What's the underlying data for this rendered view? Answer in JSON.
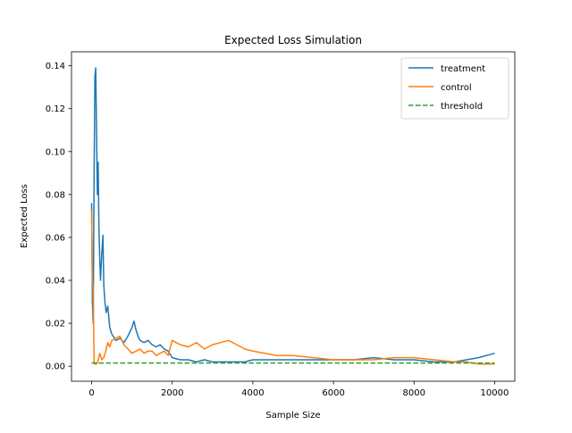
{
  "chart_data": {
    "type": "line",
    "title": "Expected Loss Simulation",
    "xlabel": "Sample Size",
    "ylabel": "Expected Loss",
    "xlim": [
      -500,
      10500
    ],
    "ylim": [
      -0.007,
      0.1465
    ],
    "xticks": [
      0,
      2000,
      4000,
      6000,
      8000,
      10000
    ],
    "xtick_labels": [
      "0",
      "2000",
      "4000",
      "6000",
      "8000",
      "10000"
    ],
    "yticks": [
      0.0,
      0.02,
      0.04,
      0.06,
      0.08,
      0.1,
      0.12,
      0.14
    ],
    "ytick_labels": [
      "0.00",
      "0.02",
      "0.04",
      "0.06",
      "0.08",
      "0.10",
      "0.12",
      "0.14"
    ],
    "grid": false,
    "legend_position": "top-right",
    "series": [
      {
        "name": "treatment",
        "color": "#1f77b4",
        "style": "solid",
        "x": [
          0,
          20,
          40,
          60,
          80,
          100,
          120,
          140,
          160,
          180,
          200,
          220,
          250,
          280,
          300,
          330,
          360,
          400,
          450,
          500,
          600,
          700,
          800,
          900,
          1000,
          1050,
          1100,
          1150,
          1200,
          1300,
          1400,
          1500,
          1600,
          1700,
          1800,
          1900,
          2000,
          2200,
          2400,
          2600,
          2800,
          3000,
          3200,
          3400,
          3600,
          3800,
          4000,
          4500,
          5000,
          5500,
          6000,
          6500,
          7000,
          7500,
          8000,
          8500,
          9000,
          9300,
          9600,
          9800,
          10000
        ],
        "y": [
          0.076,
          0.03,
          0.02,
          0.09,
          0.135,
          0.139,
          0.11,
          0.08,
          0.095,
          0.065,
          0.05,
          0.04,
          0.052,
          0.061,
          0.038,
          0.03,
          0.025,
          0.028,
          0.018,
          0.015,
          0.012,
          0.013,
          0.011,
          0.014,
          0.018,
          0.021,
          0.017,
          0.014,
          0.012,
          0.011,
          0.012,
          0.01,
          0.009,
          0.01,
          0.008,
          0.007,
          0.004,
          0.003,
          0.003,
          0.002,
          0.003,
          0.002,
          0.002,
          0.002,
          0.002,
          0.002,
          0.003,
          0.003,
          0.003,
          0.003,
          0.003,
          0.003,
          0.004,
          0.003,
          0.003,
          0.002,
          0.002,
          0.003,
          0.004,
          0.005,
          0.006
        ]
      },
      {
        "name": "control",
        "color": "#ff7f0e",
        "style": "solid",
        "x": [
          0,
          20,
          40,
          60,
          80,
          100,
          120,
          150,
          200,
          250,
          300,
          350,
          400,
          450,
          500,
          600,
          700,
          800,
          900,
          1000,
          1100,
          1200,
          1300,
          1400,
          1500,
          1600,
          1700,
          1800,
          1900,
          2000,
          2100,
          2200,
          2400,
          2600,
          2800,
          3000,
          3200,
          3400,
          3600,
          3800,
          4000,
          4300,
          4600,
          5000,
          5500,
          6000,
          6500,
          7000,
          7500,
          8000,
          8500,
          9000,
          9300,
          9600,
          9800,
          10000
        ],
        "y": [
          0.073,
          0.04,
          0.035,
          0.002,
          0.001,
          0.001,
          0.001,
          0.002,
          0.006,
          0.003,
          0.004,
          0.007,
          0.011,
          0.009,
          0.012,
          0.013,
          0.014,
          0.01,
          0.008,
          0.006,
          0.007,
          0.008,
          0.006,
          0.007,
          0.007,
          0.005,
          0.006,
          0.007,
          0.005,
          0.012,
          0.011,
          0.01,
          0.009,
          0.011,
          0.008,
          0.01,
          0.011,
          0.012,
          0.01,
          0.008,
          0.007,
          0.006,
          0.005,
          0.005,
          0.004,
          0.003,
          0.003,
          0.003,
          0.004,
          0.004,
          0.003,
          0.002,
          0.002,
          0.001,
          0.001,
          0.001
        ]
      },
      {
        "name": "threshold",
        "color": "#2ca02c",
        "style": "dashed",
        "x": [
          0,
          10000
        ],
        "y": [
          0.0015,
          0.0015
        ]
      }
    ]
  }
}
